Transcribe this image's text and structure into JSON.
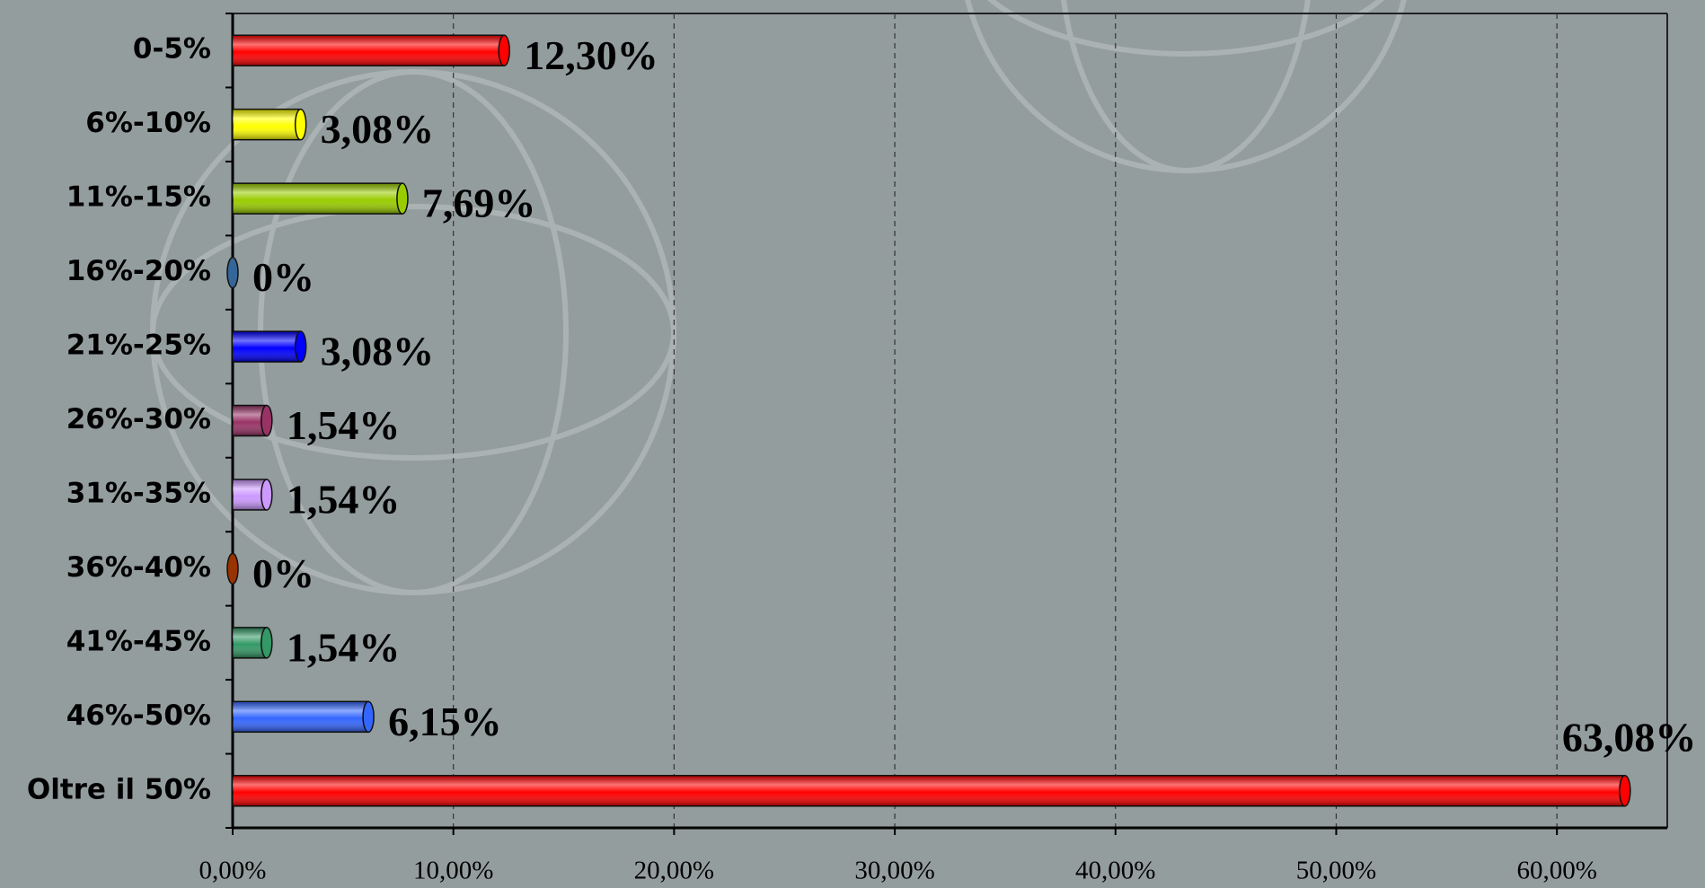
{
  "chart_data": {
    "type": "bar",
    "orientation": "horizontal",
    "categories": [
      "0-5%",
      "6%-10%",
      "11%-15%",
      "16%-20%",
      "21%-25%",
      "26%-30%",
      "31%-35%",
      "36%-40%",
      "41%-45%",
      "46%-50%",
      "Oltre il 50%"
    ],
    "values": [
      12.3,
      3.08,
      7.69,
      0,
      3.08,
      1.54,
      1.54,
      0,
      1.54,
      6.15,
      63.08
    ],
    "value_labels": [
      "12,30%",
      "3,08%",
      "7,69%",
      "0%",
      "3,08%",
      "1,54%",
      "1,54%",
      "0%",
      "1,54%",
      "6,15%",
      "63,08%"
    ],
    "colors": [
      "#ff0000",
      "#ffff00",
      "#99cc00",
      "#336699",
      "#0000ff",
      "#993366",
      "#cc99ff",
      "#993300",
      "#339966",
      "#3366ff",
      "#ff0000"
    ],
    "xlim": [
      0,
      65
    ],
    "xticks": [
      {
        "value": 0,
        "label": "0,00%"
      },
      {
        "value": 10,
        "label": "10,00%"
      },
      {
        "value": 20,
        "label": "20,00%"
      },
      {
        "value": 30,
        "label": "30,00%"
      },
      {
        "value": 40,
        "label": "40,00%"
      },
      {
        "value": 50,
        "label": "50,00%"
      },
      {
        "value": 60,
        "label": "60,00%"
      }
    ],
    "grid": true
  }
}
